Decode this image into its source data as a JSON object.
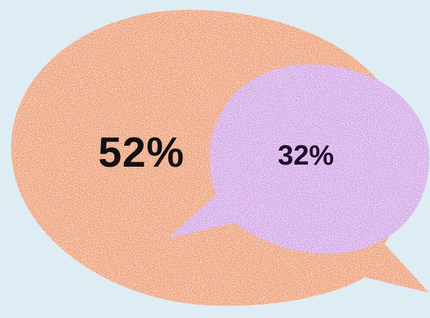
{
  "bubbles": [
    {
      "label": "52%",
      "color": "#f0925a"
    },
    {
      "label": "32%",
      "color": "#cf9be6"
    }
  ],
  "background_color": "#deedf3"
}
